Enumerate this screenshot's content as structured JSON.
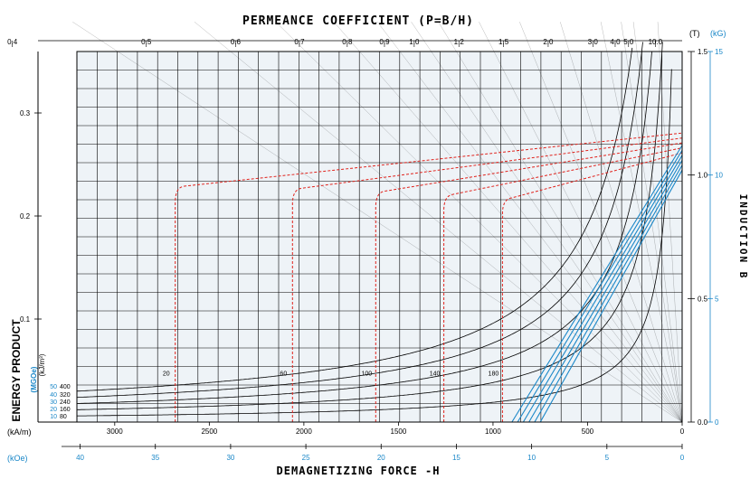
{
  "chart_data": {
    "type": "line",
    "title": "PERMEANCE COEFFICIENT (P=B/H)",
    "xlabel": "DEMAGNETIZING FORCE -H",
    "ylabel": "INDUCTION B",
    "energy_label": "ENERGY PRODUCT",
    "unit_t": "(T)",
    "unit_kg": "(kG)",
    "unit_kam": "(kA/m)",
    "unit_koe": "(kOe)",
    "unit_mgoe": "(MGOe)",
    "unit_kjm3": "(kJ/m³)",
    "h_ticks_kam": [
      "3000",
      "2500",
      "2000",
      "1500",
      "1000",
      "500",
      "0"
    ],
    "h_ticks_koe": [
      "40",
      "35",
      "30",
      "25",
      "20",
      "15",
      "10",
      "5",
      "0"
    ],
    "b_ticks_t": [
      "0.0",
      "0.5",
      "1.0",
      "1.5"
    ],
    "b_ticks_kg": [
      "0",
      "5",
      "10",
      "15"
    ],
    "energy_ticks": [
      "0.1",
      "0.2",
      "0.3"
    ],
    "permeance_values": [
      0.4,
      0.5,
      0.6,
      0.7,
      0.8,
      0.9,
      1.0,
      1.2,
      1.5,
      2.0,
      3.0,
      4.0,
      5.0,
      10.0
    ],
    "permeance_labels": [
      "0.4",
      "0.5",
      "0.6",
      "0.7",
      "0.8",
      "0.9",
      "1.0",
      "1.2",
      "1.5",
      "2.0",
      "3.0",
      "4.0",
      "5.0",
      "10.0"
    ],
    "energy_legend_mgoe": [
      "50",
      "40",
      "30",
      "20",
      "10"
    ],
    "energy_legend_kj": [
      "400",
      "320",
      "240",
      "160",
      "80"
    ],
    "energy_curves_kjm3": [
      80,
      160,
      240,
      320,
      400
    ],
    "red_series": [
      {
        "label": "20",
        "knee_h_kam": 2680,
        "br_t": 1.17
      },
      {
        "label": "60",
        "knee_h_kam": 2060,
        "br_t": 1.15
      },
      {
        "label": "100",
        "knee_h_kam": 1620,
        "br_t": 1.13
      },
      {
        "label": "140",
        "knee_h_kam": 1260,
        "br_t": 1.11
      },
      {
        "label": "180",
        "knee_h_kam": 950,
        "br_t": 1.09
      }
    ],
    "blue_series": [
      {
        "hc_kam": 900,
        "br_t": 1.12
      },
      {
        "hc_kam": 870,
        "br_t": 1.1
      },
      {
        "hc_kam": 840,
        "br_t": 1.08
      },
      {
        "hc_kam": 810,
        "br_t": 1.06
      },
      {
        "hc_kam": 780,
        "br_t": 1.04
      },
      {
        "hc_kam": 750,
        "br_t": 1.02
      }
    ],
    "colors": {
      "grid": "#000000",
      "plot_bg": "#eef3f7",
      "red": "#e0221c",
      "blue": "#1a87c8",
      "curve": "#000000",
      "accent": "#1a87c8"
    }
  }
}
